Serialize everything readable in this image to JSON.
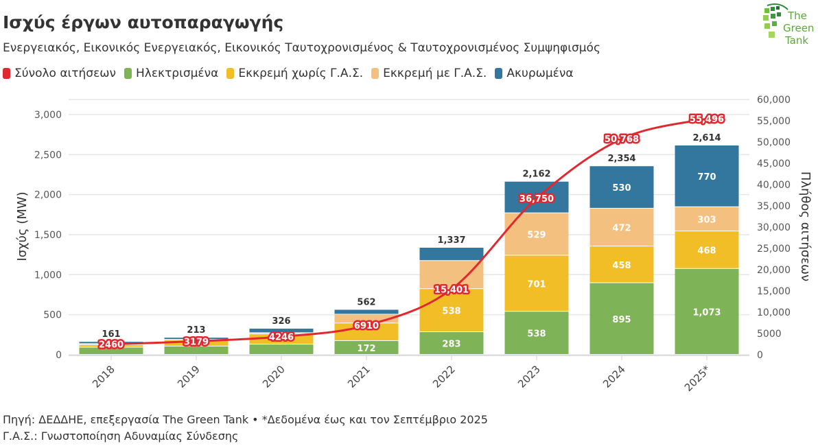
{
  "title": "Ισχύς έργων αυτοπαραγωγής",
  "subtitle": "Ενεργειακός, Εικονικός Ενεργειακός, Εικονικός Ταυτοχρονισμένος & Ταυτοχρονισμένος Συμψηφισμός",
  "logo_text": "The Green Tank",
  "footer": {
    "source": "Πηγή: ΔΕΔΔΗΕ, επεξεργασία The Green Tank • *Δεδομένα έως και τον Σεπτέμβριο 2025",
    "note": "Γ.Α.Σ.: Γνωστοποίηση Αδυναμίας Σύνδεσης"
  },
  "chart_data": {
    "type": "bar",
    "stacked": true,
    "categories": [
      "2018",
      "2019",
      "2020",
      "2021",
      "2022",
      "2023",
      "2024",
      "2025*"
    ],
    "series": [
      {
        "name": "Ηλεκτρισμένα",
        "color": "#7fb357",
        "values": [
          90,
          104,
          128,
          172,
          283,
          538,
          895,
          1073
        ]
      },
      {
        "name": "Εκκρεμή χωρίς Γ.Α.Σ.",
        "color": "#f2be27",
        "values": [
          30,
          78,
          128,
          220,
          538,
          701,
          458,
          468
        ]
      },
      {
        "name": "Εκκρεμή με Γ.Α.Σ.",
        "color": "#f3c080",
        "values": [
          15,
          5,
          15,
          110,
          351,
          529,
          472,
          303
        ]
      },
      {
        "name": "Ακυρωμένα",
        "color": "#33779f",
        "values": [
          26,
          26,
          55,
          60,
          165,
          394,
          530,
          770
        ]
      }
    ],
    "segment_labels": [
      [
        null,
        null,
        null,
        "172",
        "283",
        "538",
        "895",
        "1,073"
      ],
      [
        null,
        null,
        null,
        null,
        "538",
        "701",
        "458",
        "468"
      ],
      [
        null,
        null,
        null,
        null,
        null,
        "529",
        "472",
        "303"
      ],
      [
        null,
        null,
        null,
        null,
        null,
        null,
        "530",
        "770"
      ]
    ],
    "totals": [
      "161",
      "213",
      "326",
      "562",
      "1,337",
      "2,162",
      "2,354",
      "2,614"
    ],
    "line": {
      "name": "Σύνολο αιτήσεων",
      "color": "#e0282e",
      "axis": "right",
      "values": [
        2460,
        3179,
        4246,
        6910,
        15401,
        36750,
        50768,
        55496
      ],
      "labels": [
        "2460",
        "3179",
        "4246",
        "6910",
        "15,401",
        "36,750",
        "50,768",
        "55,496"
      ]
    },
    "ylabel": "Ισχύς (MW)",
    "y2label": "Πλήθος αιτήσεων",
    "ylim": [
      0,
      3188
    ],
    "y2lim": [
      0,
      60000
    ],
    "yticks": [
      "0",
      "500",
      "1,000",
      "1,500",
      "2,000",
      "2,500",
      "3,000"
    ],
    "y2ticks": [
      "0",
      "5000",
      "10,000",
      "15,000",
      "20,000",
      "25,000",
      "30,000",
      "35,000",
      "40,000",
      "45,000",
      "50,000",
      "55,000",
      "60,000"
    ],
    "grid": true,
    "legend_position": "top-left"
  }
}
